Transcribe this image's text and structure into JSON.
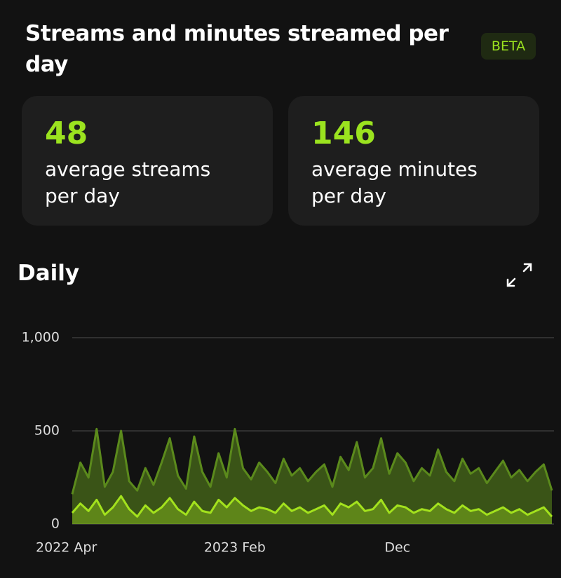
{
  "header": {
    "title": "Streams and minutes streamed per day",
    "badge": "BETA"
  },
  "stats": [
    {
      "value": 48,
      "label": "average streams per day"
    },
    {
      "value": 146,
      "label": "average minutes per day"
    }
  ],
  "chart_data": {
    "type": "line",
    "title": "Daily",
    "categories": [
      "2022 Apr",
      null,
      null,
      null,
      null,
      null,
      null,
      null,
      null,
      null,
      null,
      null,
      null,
      null,
      null,
      null,
      null,
      null,
      null,
      null,
      "2023 Feb",
      null,
      null,
      null,
      null,
      null,
      null,
      null,
      null,
      null,
      null,
      null,
      null,
      null,
      null,
      null,
      null,
      null,
      null,
      null,
      "Dec",
      null,
      null,
      null,
      null,
      null,
      null,
      null,
      null,
      null,
      null,
      null,
      null,
      null,
      null,
      null,
      null,
      null,
      null,
      null
    ],
    "series": [
      {
        "color": "#5b8a1c",
        "values": [
          160,
          330,
          250,
          510,
          200,
          280,
          500,
          230,
          180,
          300,
          210,
          330,
          460,
          260,
          190,
          470,
          280,
          200,
          380,
          250,
          510,
          300,
          240,
          330,
          280,
          220,
          350,
          260,
          300,
          230,
          280,
          320,
          200,
          360,
          290,
          440,
          250,
          300,
          460,
          270,
          380,
          330,
          230,
          300,
          260,
          400,
          280,
          230,
          350,
          270,
          300,
          220,
          280,
          340,
          250,
          290,
          230,
          280,
          320,
          180
        ]
      },
      {
        "color": "#a3e21d",
        "values": [
          60,
          110,
          70,
          130,
          50,
          90,
          150,
          80,
          40,
          100,
          60,
          90,
          140,
          80,
          50,
          120,
          70,
          60,
          130,
          90,
          140,
          100,
          70,
          90,
          80,
          60,
          110,
          70,
          90,
          60,
          80,
          100,
          50,
          110,
          90,
          120,
          70,
          80,
          130,
          60,
          100,
          90,
          60,
          80,
          70,
          110,
          80,
          60,
          100,
          70,
          80,
          50,
          70,
          90,
          60,
          80,
          50,
          70,
          90,
          40
        ]
      }
    ],
    "ylim": [
      0,
      1000
    ],
    "yticks": [
      0,
      500,
      {
        "value": 1000,
        "label": "1,000"
      }
    ],
    "grid": true
  }
}
